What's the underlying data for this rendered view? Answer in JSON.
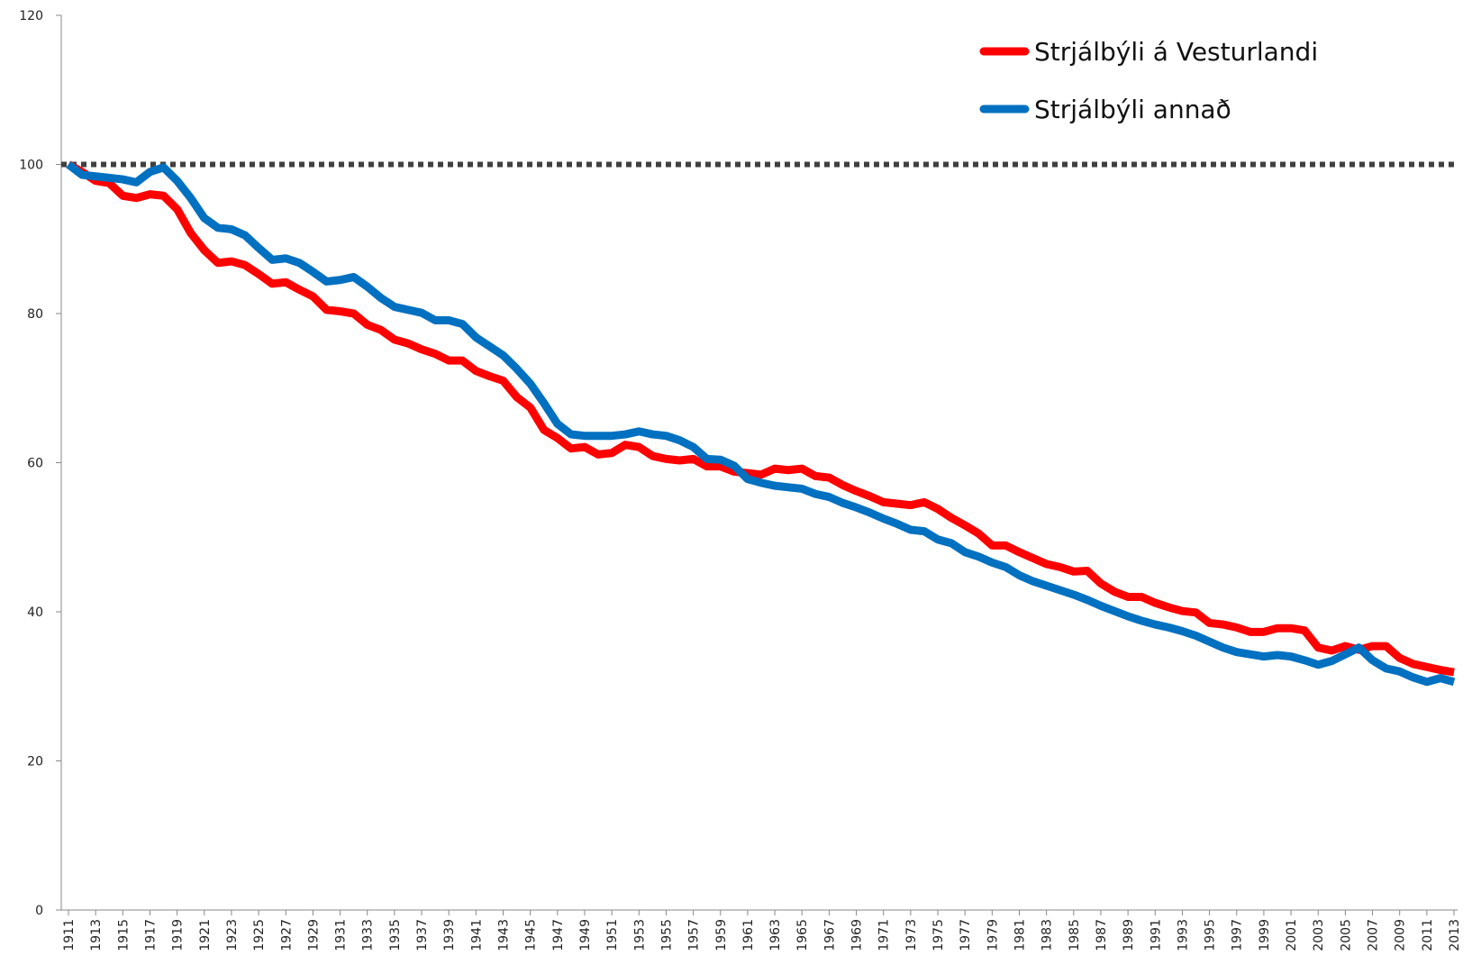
{
  "chart_data": {
    "type": "line",
    "x": [
      1911,
      1912,
      1913,
      1914,
      1915,
      1916,
      1917,
      1918,
      1919,
      1920,
      1921,
      1922,
      1923,
      1924,
      1925,
      1926,
      1927,
      1928,
      1929,
      1930,
      1931,
      1932,
      1933,
      1934,
      1935,
      1936,
      1937,
      1938,
      1939,
      1940,
      1941,
      1942,
      1943,
      1944,
      1945,
      1946,
      1947,
      1948,
      1949,
      1950,
      1951,
      1952,
      1953,
      1954,
      1955,
      1956,
      1957,
      1958,
      1959,
      1960,
      1961,
      1962,
      1963,
      1964,
      1965,
      1966,
      1967,
      1968,
      1969,
      1970,
      1971,
      1972,
      1973,
      1974,
      1975,
      1976,
      1977,
      1978,
      1979,
      1980,
      1981,
      1982,
      1983,
      1984,
      1985,
      1986,
      1987,
      1988,
      1989,
      1990,
      1991,
      1992,
      1993,
      1994,
      1995,
      1996,
      1997,
      1998,
      1999,
      2000,
      2001,
      2002,
      2003,
      2004,
      2005,
      2006,
      2007,
      2008,
      2009,
      2010,
      2011,
      2012,
      2013
    ],
    "series": [
      {
        "name": "Strjálbýli á Vesturlandi",
        "color": "#ff0000",
        "values": [
          100,
          99,
          97.8,
          97.5,
          95.8,
          95.5,
          96,
          95.8,
          94,
          90.8,
          88.5,
          86.8,
          87,
          86.5,
          85.3,
          84,
          84.2,
          83.2,
          82.3,
          80.5,
          80.3,
          80,
          78.5,
          77.8,
          76.5,
          76,
          75.2,
          74.6,
          73.7,
          73.7,
          72.3,
          71.6,
          71,
          68.8,
          67.4,
          64.4,
          63.3,
          61.9,
          62.1,
          61.1,
          61.3,
          62.4,
          62.1,
          60.9,
          60.5,
          60.3,
          60.5,
          59.5,
          59.5,
          58.8,
          58.6,
          58.4,
          59.2,
          59,
          59.2,
          58.2,
          58,
          57,
          56.2,
          55.5,
          54.7,
          54.5,
          54.3,
          54.7,
          53.8,
          52.6,
          51.6,
          50.5,
          48.9,
          48.9,
          48,
          47.2,
          46.4,
          46,
          45.4,
          45.5,
          43.8,
          42.7,
          42,
          42,
          41.2,
          40.6,
          40.1,
          39.9,
          38.5,
          38.3,
          37.9,
          37.3,
          37.3,
          37.8,
          37.8,
          37.5,
          35.2,
          34.8,
          35.4,
          34.9,
          35.4,
          35.4,
          33.8,
          33,
          32.6,
          32.2,
          31.9
        ]
      },
      {
        "name": "Strjálbýli annað",
        "color": "#0070c0",
        "values": [
          100,
          98.6,
          98.4,
          98.2,
          98,
          97.6,
          99,
          99.6,
          97.8,
          95.5,
          92.8,
          91.5,
          91.3,
          90.5,
          88.8,
          87.2,
          87.4,
          86.8,
          85.6,
          84.3,
          84.5,
          84.9,
          83.6,
          82.1,
          80.9,
          80.5,
          80.1,
          79.1,
          79.1,
          78.6,
          76.8,
          75.6,
          74.4,
          72.6,
          70.6,
          68,
          65.2,
          63.8,
          63.6,
          63.6,
          63.6,
          63.8,
          64.2,
          63.8,
          63.6,
          63,
          62.1,
          60.5,
          60.4,
          59.6,
          57.8,
          57.3,
          56.9,
          56.7,
          56.5,
          55.8,
          55.4,
          54.6,
          54,
          53.3,
          52.5,
          51.8,
          51,
          50.8,
          49.7,
          49.2,
          48,
          47.4,
          46.6,
          46,
          44.9,
          44.1,
          43.5,
          42.9,
          42.3,
          41.6,
          40.8,
          40.1,
          39.4,
          38.8,
          38.3,
          37.9,
          37.4,
          36.8,
          36,
          35.2,
          34.6,
          34.3,
          34,
          34.2,
          34,
          33.5,
          32.9,
          33.4,
          34.3,
          35.2,
          33.5,
          32.4,
          32,
          31.2,
          30.6,
          31.1,
          30.6
        ]
      }
    ],
    "xlim": [
      1911,
      2013
    ],
    "xticks": [
      1911,
      1913,
      1915,
      1917,
      1919,
      1921,
      1923,
      1925,
      1927,
      1929,
      1931,
      1933,
      1935,
      1937,
      1939,
      1941,
      1943,
      1945,
      1947,
      1949,
      1951,
      1953,
      1955,
      1957,
      1959,
      1961,
      1963,
      1965,
      1967,
      1969,
      1971,
      1973,
      1975,
      1977,
      1979,
      1981,
      1983,
      1985,
      1987,
      1989,
      1991,
      1993,
      1995,
      1997,
      1999,
      2001,
      2003,
      2005,
      2007,
      2009,
      2011,
      2013
    ],
    "ylim": [
      0,
      120
    ],
    "yticks": [
      0,
      20,
      40,
      60,
      80,
      100,
      120
    ],
    "reference_line": 100,
    "reference_color": "#404040",
    "grid": false,
    "legend": "upper right"
  }
}
